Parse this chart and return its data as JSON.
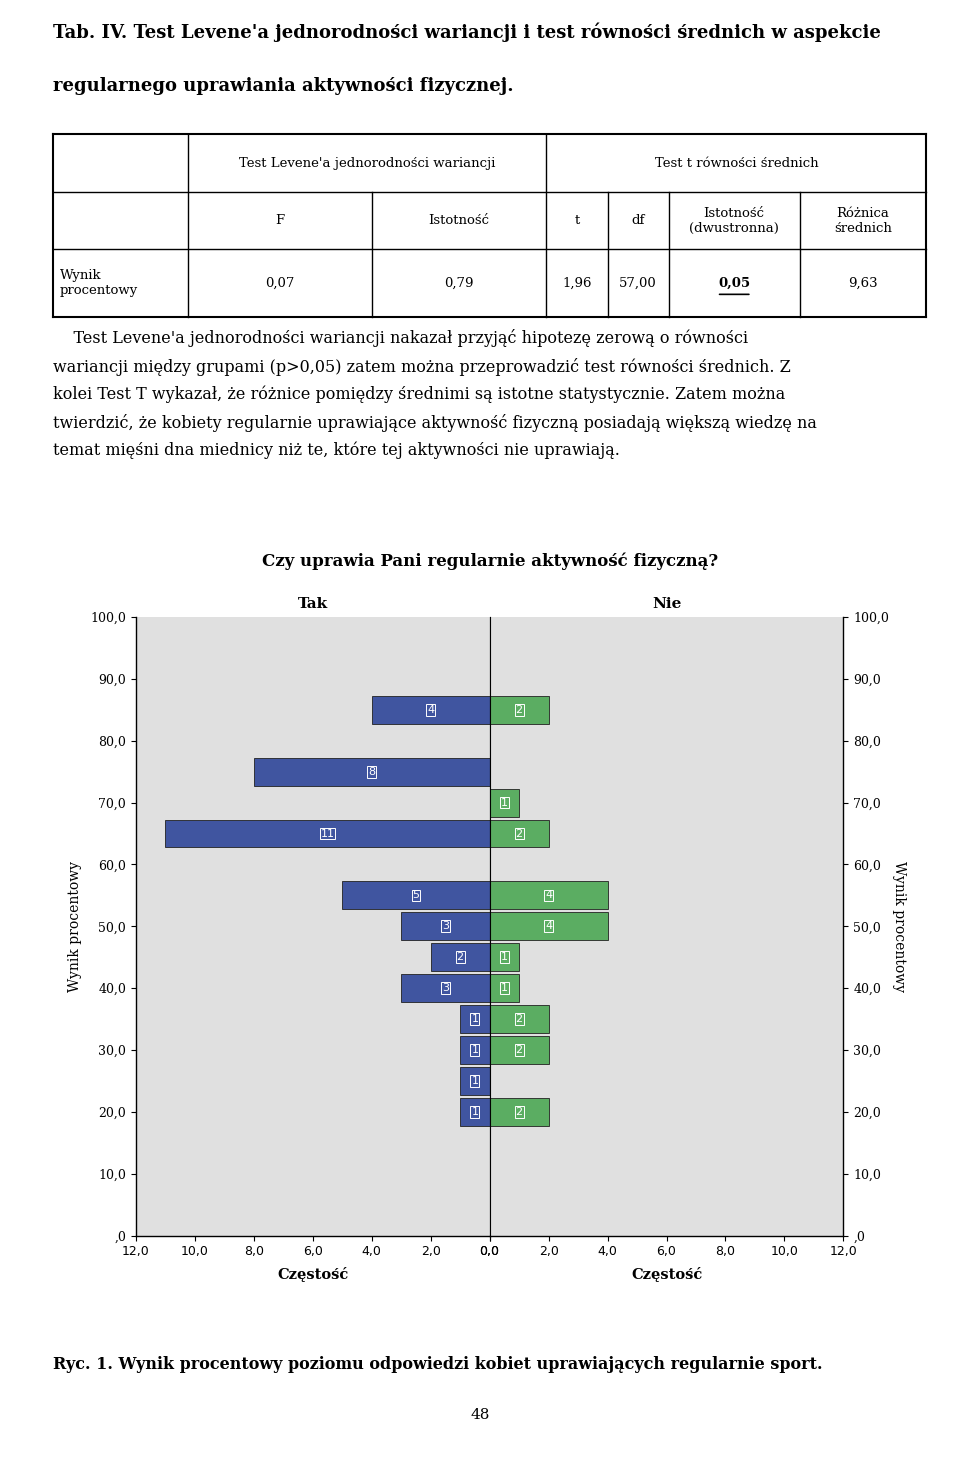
{
  "title_line1": "Tab. IV. Test Levene'a jednorodności wariancji i test równości średnich w aspekcie",
  "title_line2": "regularnego uprawiania aktywności fizycznej.",
  "body_text_lines": [
    "    Test Levene'a jednorodności wariancji nakazał przyjąć hipotezę zerową o równości",
    "wariancji między grupami (p>0,05) zatem można przeprowadzić test równości średnich. Z",
    "kolei Test T wykazał, że różnice pomiędzy średnimi są istotne statystycznie. Zatem można",
    "twierdzić, że kobiety regularnie uprawiające aktywność fizyczną posiadają większą wiedzę na",
    "temat mięśni dna miednicy niż te, które tej aktywności nie uprawiają."
  ],
  "chart_title": "Czy uprawia Pani regularnie aktywność fizyczną?",
  "left_label": "Tak",
  "right_label": "Nie",
  "ylabel_left": "Wynik procentowy",
  "ylabel_right": "Wynik procentowy",
  "xlabel_left": "Częstość",
  "xlabel_right": "Częstość",
  "caption": "Ryc. 1. Wynik procentowy poziomu odpowiedzi kobiet uprawiających regularnie sport.",
  "page_number": "48",
  "ytick_vals": [
    0,
    10,
    20,
    30,
    40,
    50,
    60,
    70,
    80,
    90,
    100
  ],
  "ytick_labels": [
    ",0",
    "10,0",
    "20,0",
    "30,0",
    "40,0",
    "50,0",
    "60,0",
    "70,0",
    "80,0",
    "90,0",
    "100,0"
  ],
  "xtick_vals": [
    0,
    2,
    4,
    6,
    8,
    10,
    12
  ],
  "xtick_labels": [
    "0,0",
    "2,0",
    "4,0",
    "6,0",
    "8,0",
    "10,0",
    "12,0"
  ],
  "blue_color": "#4055A0",
  "green_color": "#5BAD62",
  "bg_color": "#E0E0E0",
  "bar_height": 4.5,
  "bars": [
    {
      "y": 20,
      "tak": 1,
      "nie": 2
    },
    {
      "y": 25,
      "tak": 1,
      "nie": 0
    },
    {
      "y": 30,
      "tak": 1,
      "nie": 2
    },
    {
      "y": 35,
      "tak": 1,
      "nie": 2
    },
    {
      "y": 40,
      "tak": 3,
      "nie": 1
    },
    {
      "y": 45,
      "tak": 2,
      "nie": 1
    },
    {
      "y": 50,
      "tak": 3,
      "nie": 4
    },
    {
      "y": 55,
      "tak": 5,
      "nie": 4
    },
    {
      "y": 65,
      "tak": 11,
      "nie": 2
    },
    {
      "y": 70,
      "tak": 0,
      "nie": 1
    },
    {
      "y": 75,
      "tak": 8,
      "nie": 0
    },
    {
      "y": 85,
      "tak": 4,
      "nie": 2
    }
  ]
}
